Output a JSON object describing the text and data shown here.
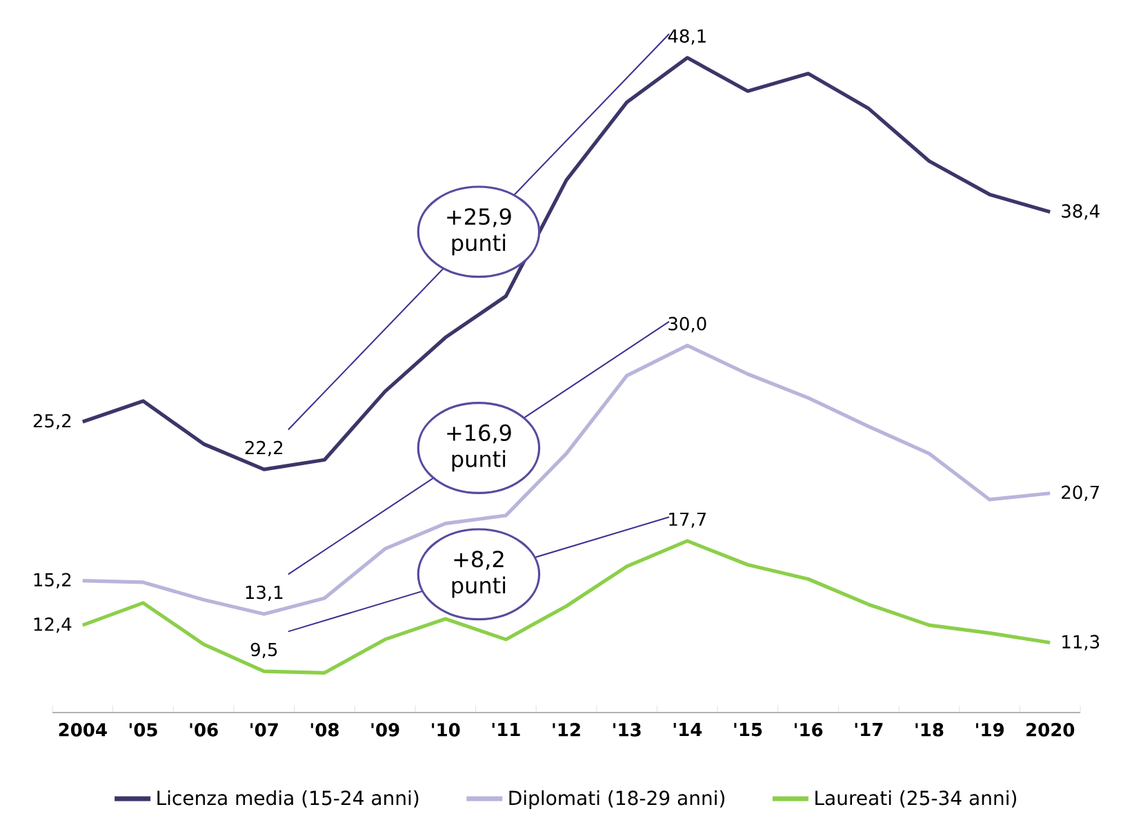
{
  "chart_data": {
    "type": "line",
    "categories": [
      "2004",
      "'05",
      "'06",
      "'07",
      "'08",
      "'09",
      "'10",
      "'11",
      "'12",
      "'13",
      "'14",
      "'15",
      "'16",
      "'17",
      "'18",
      "'19",
      "2020"
    ],
    "series": [
      {
        "name": "Licenza media (15-24 anni)",
        "color": "#3b3669",
        "values": [
          25.2,
          26.5,
          23.8,
          22.2,
          22.8,
          27.1,
          30.5,
          33.1,
          40.4,
          45.3,
          48.1,
          46.0,
          47.1,
          44.9,
          41.6,
          39.5,
          38.4
        ],
        "value_labels": [
          "25,2",
          null,
          null,
          "22,2",
          null,
          null,
          null,
          null,
          null,
          null,
          "48,1",
          null,
          null,
          null,
          null,
          null,
          "38,4"
        ]
      },
      {
        "name": "Diplomati (18-29 anni)",
        "color": "#b8b5db",
        "values": [
          15.2,
          15.1,
          14.0,
          13.1,
          14.1,
          17.2,
          18.8,
          19.3,
          23.2,
          28.1,
          30.0,
          28.2,
          26.7,
          24.9,
          23.2,
          20.3,
          20.7
        ],
        "value_labels": [
          "15,2",
          null,
          null,
          "13,1",
          null,
          null,
          null,
          null,
          null,
          null,
          "30,0",
          null,
          null,
          null,
          null,
          null,
          "20,7"
        ]
      },
      {
        "name": "Laureati (25-34 anni)",
        "color": "#8ccf4a",
        "values": [
          12.4,
          13.8,
          11.2,
          9.5,
          9.4,
          11.5,
          12.8,
          11.5,
          13.6,
          16.1,
          17.7,
          16.2,
          15.3,
          13.7,
          12.4,
          11.9,
          11.3
        ],
        "value_labels": [
          "12,4",
          null,
          null,
          "9,5",
          null,
          null,
          null,
          null,
          null,
          null,
          "17,7",
          null,
          null,
          null,
          null,
          null,
          "11,3"
        ]
      }
    ],
    "annotations": [
      "+25,9 punti",
      "+16,9 punti",
      "+8,2 punti"
    ],
    "legend": "bottom",
    "marker": "none",
    "line_style": "solid"
  }
}
